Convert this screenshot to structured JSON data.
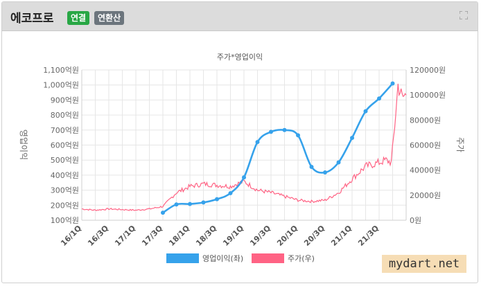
{
  "header": {
    "company": "에코프로",
    "badge_consolidated": "연결",
    "badge_annualized": "연환산"
  },
  "watermark": "mydart.net",
  "chart_data": {
    "type": "line",
    "title": "주가*영업이익",
    "ylabel_left": "영업이익",
    "ylabel_right": "주가",
    "x_ticks": [
      "16/1Q",
      "16/3Q",
      "17/1Q",
      "17/3Q",
      "18/1Q",
      "18/3Q",
      "19/1Q",
      "19/3Q",
      "20/1Q",
      "20/3Q",
      "21/1Q",
      "21/3Q"
    ],
    "y_left": {
      "min": 100,
      "max": 1100,
      "step": 100,
      "tick_labels": [
        "1,100억원",
        "1,000억원",
        "900억원",
        "800억원",
        "700억원",
        "600억원",
        "500억원",
        "400억원",
        "300억원",
        "200억원",
        "100억원"
      ]
    },
    "y_right": {
      "min": 0,
      "max": 120000,
      "step": 20000,
      "tick_labels": [
        "120000원",
        "100000원",
        "80000원",
        "60000원",
        "40000원",
        "20000원",
        "0원"
      ]
    },
    "series": [
      {
        "name": "영업이익(좌)",
        "axis": "left",
        "color": "#36a2eb",
        "points": [
          {
            "q": 6,
            "v": 150
          },
          {
            "q": 7,
            "v": 205
          },
          {
            "q": 8,
            "v": 208
          },
          {
            "q": 9,
            "v": 218
          },
          {
            "q": 10,
            "v": 240
          },
          {
            "q": 11,
            "v": 280
          },
          {
            "q": 12,
            "v": 385
          },
          {
            "q": 13,
            "v": 620
          },
          {
            "q": 14,
            "v": 688
          },
          {
            "q": 15,
            "v": 700
          },
          {
            "q": 16,
            "v": 665
          },
          {
            "q": 17,
            "v": 455
          },
          {
            "q": 18,
            "v": 418
          },
          {
            "q": 19,
            "v": 485
          },
          {
            "q": 20,
            "v": 648
          },
          {
            "q": 21,
            "v": 825
          },
          {
            "q": 22,
            "v": 910
          },
          {
            "q": 23,
            "v": 1010
          }
        ]
      },
      {
        "name": "주가(우)",
        "axis": "right",
        "color": "#ff6384",
        "points": [
          {
            "q": 0,
            "v": 9000
          },
          {
            "q": 1,
            "v": 8000
          },
          {
            "q": 2,
            "v": 9000
          },
          {
            "q": 3,
            "v": 8500
          },
          {
            "q": 4,
            "v": 8000
          },
          {
            "q": 5,
            "v": 9000
          },
          {
            "q": 6,
            "v": 11000
          },
          {
            "q": 7,
            "v": 22000
          },
          {
            "q": 8,
            "v": 27000
          },
          {
            "q": 9,
            "v": 29000
          },
          {
            "q": 10,
            "v": 28000
          },
          {
            "q": 11,
            "v": 27000
          },
          {
            "q": 12,
            "v": 31000
          },
          {
            "q": 13,
            "v": 24000
          },
          {
            "q": 14,
            "v": 22000
          },
          {
            "q": 15,
            "v": 19000
          },
          {
            "q": 16,
            "v": 16000
          },
          {
            "q": 17,
            "v": 15000
          },
          {
            "q": 18,
            "v": 16000
          },
          {
            "q": 19,
            "v": 22000
          },
          {
            "q": 20,
            "v": 33000
          },
          {
            "q": 21,
            "v": 43000
          },
          {
            "q": 22,
            "v": 46000
          },
          {
            "q": 22.5,
            "v": 48000
          },
          {
            "q": 22.9,
            "v": 46000
          },
          {
            "q": 23.15,
            "v": 75000
          },
          {
            "q": 23.4,
            "v": 108000
          },
          {
            "q": 23.7,
            "v": 98000
          },
          {
            "q": 24,
            "v": 100000
          }
        ]
      }
    ],
    "legend_position": "bottom",
    "grid": true
  }
}
